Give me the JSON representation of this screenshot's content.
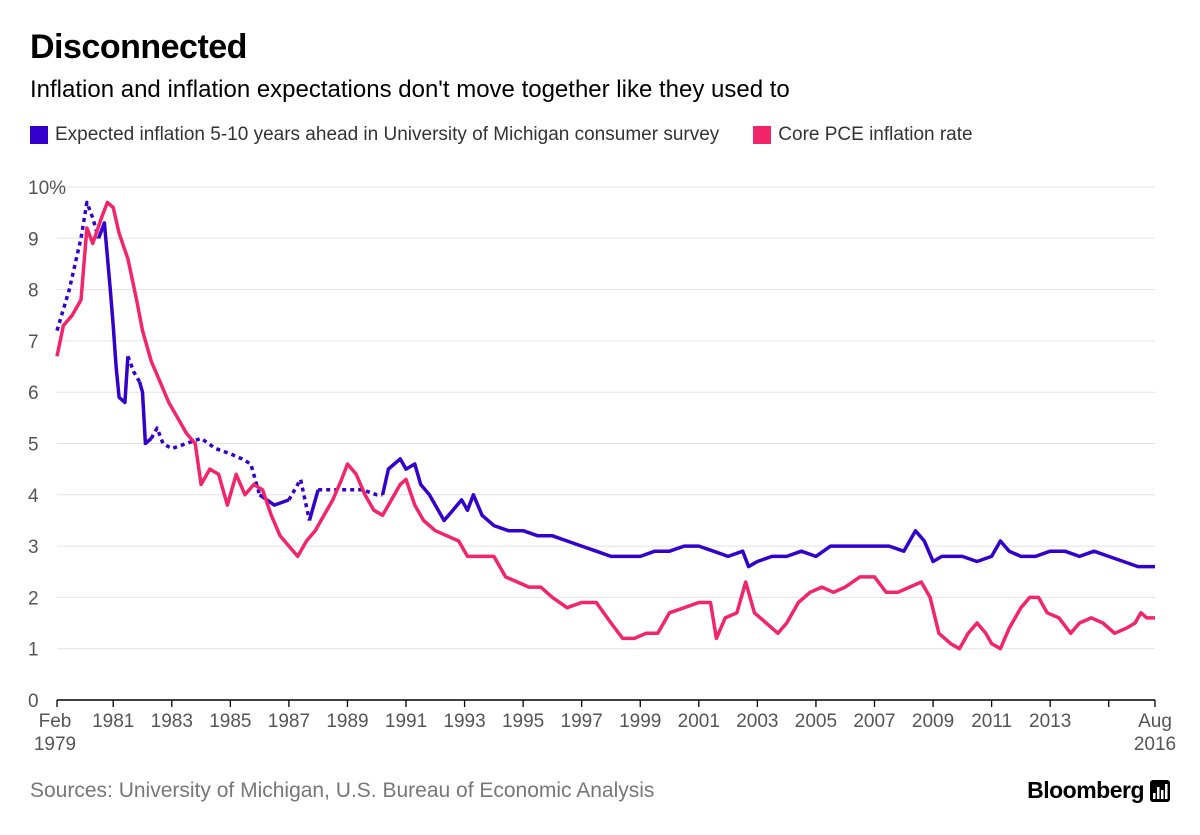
{
  "title": "Disconnected",
  "subtitle": "Inflation and inflation expectations don't move together like they used to",
  "legend": [
    {
      "label": "Expected inflation 5-10 years ahead in University of Michigan consumer survey",
      "color": "#3300CC"
    },
    {
      "label": "Core PCE inflation rate",
      "color": "#F2256B"
    }
  ],
  "source": "Sources: University of Michigan, U.S. Bureau of Economic Analysis",
  "brand": "Bloomberg",
  "brand_icon": "bloomberg-terminal-icon",
  "chart_data": {
    "type": "line",
    "ylim": [
      0,
      10
    ],
    "xlim": [
      1979.08,
      2016.58
    ],
    "grid": true,
    "legend_position": "top",
    "y_ticks": [
      {
        "value": 0,
        "label": "0"
      },
      {
        "value": 1,
        "label": "1"
      },
      {
        "value": 2,
        "label": "2"
      },
      {
        "value": 3,
        "label": "3"
      },
      {
        "value": 4,
        "label": "4"
      },
      {
        "value": 5,
        "label": "5"
      },
      {
        "value": 6,
        "label": "6"
      },
      {
        "value": 7,
        "label": "7"
      },
      {
        "value": 8,
        "label": "8"
      },
      {
        "value": 9,
        "label": "9"
      },
      {
        "value": 10,
        "label": "10%"
      }
    ],
    "x_ticks": [
      {
        "value": 1979.08,
        "label": "Feb",
        "label2": "1979"
      },
      {
        "value": 1981,
        "label": "1981"
      },
      {
        "value": 1983,
        "label": "1983"
      },
      {
        "value": 1985,
        "label": "1985"
      },
      {
        "value": 1987,
        "label": "1987"
      },
      {
        "value": 1989,
        "label": "1989"
      },
      {
        "value": 1991,
        "label": "1991"
      },
      {
        "value": 1993,
        "label": "1993"
      },
      {
        "value": 1995,
        "label": "1995"
      },
      {
        "value": 1997,
        "label": "1997"
      },
      {
        "value": 1999,
        "label": "1999"
      },
      {
        "value": 2001,
        "label": "2001"
      },
      {
        "value": 2003,
        "label": "2003"
      },
      {
        "value": 2005,
        "label": "2005"
      },
      {
        "value": 2007,
        "label": "2007"
      },
      {
        "value": 2009,
        "label": "2009"
      },
      {
        "value": 2011,
        "label": "2011"
      },
      {
        "value": 2013,
        "label": "2013"
      },
      {
        "value": 2015,
        "label": ""
      },
      {
        "value": 2016.58,
        "label": "Aug",
        "label2": "2016"
      }
    ],
    "series": [
      {
        "name": "Expected inflation 5-10 years ahead in University of Michigan consumer survey",
        "color": "#3300CC",
        "dashed_segments": [
          [
            1979.08,
            1980.5
          ],
          [
            1981.5,
            1981.9
          ],
          [
            1982.4,
            1986.0
          ],
          [
            1987.0,
            1987.7
          ],
          [
            1987.9,
            1990.2
          ]
        ],
        "points": [
          [
            1979.08,
            7.2
          ],
          [
            1979.5,
            8.0
          ],
          [
            1979.9,
            9.0
          ],
          [
            1980.1,
            9.7
          ],
          [
            1980.3,
            9.4
          ],
          [
            1980.5,
            9.0
          ],
          [
            1980.7,
            9.3
          ],
          [
            1980.9,
            8.0
          ],
          [
            1981.0,
            7.3
          ],
          [
            1981.1,
            6.5
          ],
          [
            1981.2,
            5.9
          ],
          [
            1981.4,
            5.8
          ],
          [
            1981.5,
            6.7
          ],
          [
            1981.7,
            6.4
          ],
          [
            1981.9,
            6.2
          ],
          [
            1982.0,
            6.0
          ],
          [
            1982.1,
            5.0
          ],
          [
            1982.3,
            5.1
          ],
          [
            1982.5,
            5.3
          ],
          [
            1982.7,
            5.0
          ],
          [
            1983.0,
            4.9
          ],
          [
            1983.5,
            5.0
          ],
          [
            1984.0,
            5.1
          ],
          [
            1984.5,
            4.9
          ],
          [
            1985.0,
            4.8
          ],
          [
            1985.4,
            4.7
          ],
          [
            1985.7,
            4.6
          ],
          [
            1986.0,
            4.0
          ],
          [
            1986.5,
            3.8
          ],
          [
            1987.0,
            3.9
          ],
          [
            1987.4,
            4.3
          ],
          [
            1987.7,
            3.5
          ],
          [
            1988.0,
            4.1
          ],
          [
            1988.5,
            4.1
          ],
          [
            1989.0,
            4.1
          ],
          [
            1989.5,
            4.1
          ],
          [
            1990.0,
            4.0
          ],
          [
            1990.2,
            4.0
          ],
          [
            1990.4,
            4.5
          ],
          [
            1990.6,
            4.6
          ],
          [
            1990.8,
            4.7
          ],
          [
            1991.0,
            4.5
          ],
          [
            1991.3,
            4.6
          ],
          [
            1991.5,
            4.2
          ],
          [
            1991.8,
            4.0
          ],
          [
            1992.0,
            3.8
          ],
          [
            1992.3,
            3.5
          ],
          [
            1992.6,
            3.7
          ],
          [
            1992.9,
            3.9
          ],
          [
            1993.1,
            3.7
          ],
          [
            1993.3,
            4.0
          ],
          [
            1993.6,
            3.6
          ],
          [
            1994.0,
            3.4
          ],
          [
            1994.5,
            3.3
          ],
          [
            1995.0,
            3.3
          ],
          [
            1995.5,
            3.2
          ],
          [
            1996.0,
            3.2
          ],
          [
            1996.5,
            3.1
          ],
          [
            1997.0,
            3.0
          ],
          [
            1997.5,
            2.9
          ],
          [
            1998.0,
            2.8
          ],
          [
            1998.5,
            2.8
          ],
          [
            1999.0,
            2.8
          ],
          [
            1999.5,
            2.9
          ],
          [
            2000.0,
            2.9
          ],
          [
            2000.5,
            3.0
          ],
          [
            2001.0,
            3.0
          ],
          [
            2001.5,
            2.9
          ],
          [
            2002.0,
            2.8
          ],
          [
            2002.5,
            2.9
          ],
          [
            2002.7,
            2.6
          ],
          [
            2003.0,
            2.7
          ],
          [
            2003.5,
            2.8
          ],
          [
            2004.0,
            2.8
          ],
          [
            2004.5,
            2.9
          ],
          [
            2005.0,
            2.8
          ],
          [
            2005.5,
            3.0
          ],
          [
            2006.0,
            3.0
          ],
          [
            2006.5,
            3.0
          ],
          [
            2007.0,
            3.0
          ],
          [
            2007.5,
            3.0
          ],
          [
            2008.0,
            2.9
          ],
          [
            2008.4,
            3.3
          ],
          [
            2008.7,
            3.1
          ],
          [
            2009.0,
            2.7
          ],
          [
            2009.3,
            2.8
          ],
          [
            2009.6,
            2.8
          ],
          [
            2010.0,
            2.8
          ],
          [
            2010.5,
            2.7
          ],
          [
            2011.0,
            2.8
          ],
          [
            2011.3,
            3.1
          ],
          [
            2011.6,
            2.9
          ],
          [
            2012.0,
            2.8
          ],
          [
            2012.5,
            2.8
          ],
          [
            2013.0,
            2.9
          ],
          [
            2013.5,
            2.9
          ],
          [
            2014.0,
            2.8
          ],
          [
            2014.5,
            2.9
          ],
          [
            2015.0,
            2.8
          ],
          [
            2015.5,
            2.7
          ],
          [
            2016.0,
            2.6
          ],
          [
            2016.58,
            2.6
          ]
        ]
      },
      {
        "name": "Core PCE inflation rate",
        "color": "#F2256B",
        "points": [
          [
            1979.08,
            6.7
          ],
          [
            1979.3,
            7.3
          ],
          [
            1979.6,
            7.5
          ],
          [
            1979.9,
            7.8
          ],
          [
            1980.1,
            9.2
          ],
          [
            1980.3,
            8.9
          ],
          [
            1980.6,
            9.4
          ],
          [
            1980.8,
            9.7
          ],
          [
            1981.0,
            9.6
          ],
          [
            1981.2,
            9.1
          ],
          [
            1981.5,
            8.6
          ],
          [
            1981.8,
            7.8
          ],
          [
            1982.0,
            7.2
          ],
          [
            1982.3,
            6.6
          ],
          [
            1982.6,
            6.2
          ],
          [
            1982.9,
            5.8
          ],
          [
            1983.2,
            5.5
          ],
          [
            1983.5,
            5.2
          ],
          [
            1983.8,
            5.0
          ],
          [
            1984.0,
            4.2
          ],
          [
            1984.3,
            4.5
          ],
          [
            1984.6,
            4.4
          ],
          [
            1984.9,
            3.8
          ],
          [
            1985.2,
            4.4
          ],
          [
            1985.5,
            4.0
          ],
          [
            1985.8,
            4.2
          ],
          [
            1986.1,
            4.1
          ],
          [
            1986.4,
            3.6
          ],
          [
            1986.7,
            3.2
          ],
          [
            1987.0,
            3.0
          ],
          [
            1987.3,
            2.8
          ],
          [
            1987.6,
            3.1
          ],
          [
            1987.9,
            3.3
          ],
          [
            1988.2,
            3.6
          ],
          [
            1988.5,
            3.9
          ],
          [
            1988.8,
            4.3
          ],
          [
            1989.0,
            4.6
          ],
          [
            1989.3,
            4.4
          ],
          [
            1989.6,
            4.0
          ],
          [
            1989.9,
            3.7
          ],
          [
            1990.2,
            3.6
          ],
          [
            1990.5,
            3.9
          ],
          [
            1990.8,
            4.2
          ],
          [
            1991.0,
            4.3
          ],
          [
            1991.3,
            3.8
          ],
          [
            1991.6,
            3.5
          ],
          [
            1992.0,
            3.3
          ],
          [
            1992.4,
            3.2
          ],
          [
            1992.8,
            3.1
          ],
          [
            1993.1,
            2.8
          ],
          [
            1993.5,
            2.8
          ],
          [
            1994.0,
            2.8
          ],
          [
            1994.4,
            2.4
          ],
          [
            1994.8,
            2.3
          ],
          [
            1995.2,
            2.2
          ],
          [
            1995.6,
            2.2
          ],
          [
            1996.0,
            2.0
          ],
          [
            1996.5,
            1.8
          ],
          [
            1997.0,
            1.9
          ],
          [
            1997.5,
            1.9
          ],
          [
            1998.0,
            1.5
          ],
          [
            1998.4,
            1.2
          ],
          [
            1998.8,
            1.2
          ],
          [
            1999.2,
            1.3
          ],
          [
            1999.6,
            1.3
          ],
          [
            2000.0,
            1.7
          ],
          [
            2000.5,
            1.8
          ],
          [
            2001.0,
            1.9
          ],
          [
            2001.4,
            1.9
          ],
          [
            2001.6,
            1.2
          ],
          [
            2001.9,
            1.6
          ],
          [
            2002.3,
            1.7
          ],
          [
            2002.6,
            2.3
          ],
          [
            2002.9,
            1.7
          ],
          [
            2003.3,
            1.5
          ],
          [
            2003.7,
            1.3
          ],
          [
            2004.0,
            1.5
          ],
          [
            2004.4,
            1.9
          ],
          [
            2004.8,
            2.1
          ],
          [
            2005.2,
            2.2
          ],
          [
            2005.6,
            2.1
          ],
          [
            2006.0,
            2.2
          ],
          [
            2006.5,
            2.4
          ],
          [
            2007.0,
            2.4
          ],
          [
            2007.4,
            2.1
          ],
          [
            2007.8,
            2.1
          ],
          [
            2008.2,
            2.2
          ],
          [
            2008.6,
            2.3
          ],
          [
            2008.9,
            2.0
          ],
          [
            2009.2,
            1.3
          ],
          [
            2009.6,
            1.1
          ],
          [
            2009.9,
            1.0
          ],
          [
            2010.2,
            1.3
          ],
          [
            2010.5,
            1.5
          ],
          [
            2010.8,
            1.3
          ],
          [
            2011.0,
            1.1
          ],
          [
            2011.3,
            1.0
          ],
          [
            2011.6,
            1.4
          ],
          [
            2012.0,
            1.8
          ],
          [
            2012.3,
            2.0
          ],
          [
            2012.6,
            2.0
          ],
          [
            2012.9,
            1.7
          ],
          [
            2013.3,
            1.6
          ],
          [
            2013.7,
            1.3
          ],
          [
            2014.0,
            1.5
          ],
          [
            2014.4,
            1.6
          ],
          [
            2014.8,
            1.5
          ],
          [
            2015.2,
            1.3
          ],
          [
            2015.6,
            1.4
          ],
          [
            2015.9,
            1.5
          ],
          [
            2016.1,
            1.7
          ],
          [
            2016.3,
            1.6
          ],
          [
            2016.58,
            1.6
          ]
        ]
      }
    ]
  }
}
